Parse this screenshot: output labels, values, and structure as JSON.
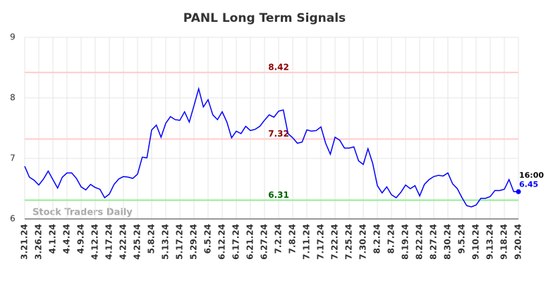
{
  "chart_data": {
    "type": "line",
    "title": "PANL Long Term Signals",
    "watermark": "Stock Traders Daily",
    "color": "#0000ff",
    "categories": [
      "3.21.24",
      null,
      null,
      "3.26.24",
      null,
      null,
      "4.1.24",
      null,
      null,
      "4.4.24",
      null,
      null,
      "4.9.24",
      null,
      null,
      "4.12.24",
      null,
      null,
      "4.17.24",
      null,
      null,
      "4.22.24",
      null,
      null,
      "4.25.24",
      null,
      null,
      "5.8.24",
      null,
      null,
      "5.13.24",
      null,
      null,
      "5.17.24",
      null,
      null,
      "5.29.24",
      null,
      null,
      "6.5.24",
      null,
      null,
      "6.12.24",
      null,
      null,
      "6.17.24",
      null,
      null,
      "6.21.24",
      null,
      null,
      "6.27.24",
      null,
      null,
      "7.2.24",
      null,
      null,
      "7.8.24",
      null,
      null,
      "7.11.24",
      null,
      null,
      "7.17.24",
      null,
      null,
      "7.22.24",
      null,
      null,
      "7.25.24",
      null,
      null,
      "7.30.24",
      null,
      null,
      "8.2.24",
      null,
      null,
      "8.7.24",
      null,
      null,
      "8.19.24",
      null,
      null,
      "8.22.24",
      null,
      null,
      "8.27.24",
      null,
      null,
      "8.30.24",
      null,
      null,
      "9.5.24",
      null,
      null,
      "9.10.24",
      null,
      null,
      "9.13.24",
      null,
      null,
      "9.18.24",
      null,
      null,
      "9.20.24"
    ],
    "values": [
      6.87,
      6.69,
      6.64,
      6.56,
      6.66,
      6.79,
      6.65,
      6.51,
      6.69,
      6.76,
      6.76,
      6.67,
      6.53,
      6.48,
      6.57,
      6.52,
      6.49,
      6.35,
      6.41,
      6.57,
      6.66,
      6.7,
      6.69,
      6.67,
      6.74,
      7.02,
      7.01,
      7.47,
      7.55,
      7.35,
      7.58,
      7.69,
      7.64,
      7.63,
      7.77,
      7.6,
      7.87,
      8.15,
      7.85,
      7.97,
      7.72,
      7.64,
      7.77,
      7.6,
      7.34,
      7.45,
      7.41,
      7.53,
      7.46,
      7.48,
      7.53,
      7.63,
      7.72,
      7.68,
      7.78,
      7.8,
      7.41,
      7.34,
      7.25,
      7.27,
      7.47,
      7.45,
      7.46,
      7.52,
      7.25,
      7.07,
      7.35,
      7.3,
      7.17,
      7.17,
      7.19,
      6.96,
      6.9,
      7.16,
      6.92,
      6.55,
      6.43,
      6.53,
      6.4,
      6.35,
      6.44,
      6.56,
      6.5,
      6.55,
      6.38,
      6.57,
      6.65,
      6.7,
      6.72,
      6.71,
      6.76,
      6.58,
      6.5,
      6.35,
      6.22,
      6.2,
      6.23,
      6.34,
      6.34,
      6.37,
      6.47,
      6.47,
      6.49,
      6.65,
      6.45,
      6.45
    ],
    "last_time": "16:00",
    "hlines": [
      {
        "value": 8.42,
        "color": "#ffcccc",
        "label_color": "#8b0000"
      },
      {
        "value": 7.32,
        "color": "#ffcccc",
        "label_color": "#8b0000"
      },
      {
        "value": 6.31,
        "color": "#90ee90",
        "label_color": "#006400"
      }
    ],
    "ylim": [
      6,
      9
    ],
    "yticks": [
      6,
      7,
      8,
      9
    ],
    "grid": true
  }
}
